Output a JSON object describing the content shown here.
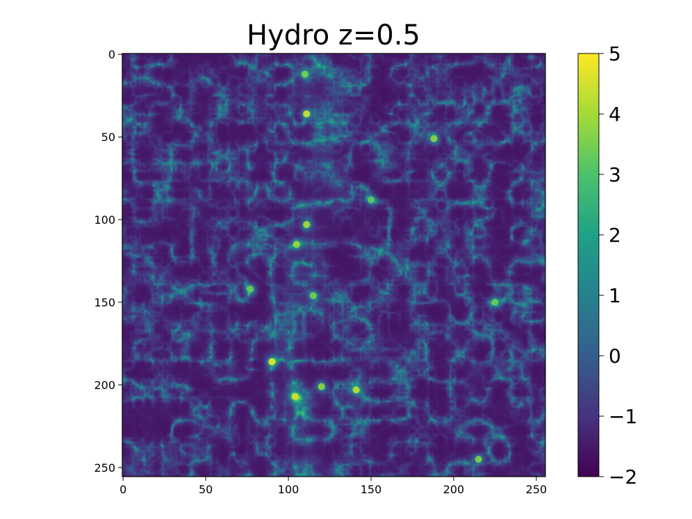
{
  "chart_data": {
    "type": "heatmap",
    "title": "Hydro z=0.5",
    "xlabel": "",
    "ylabel": "",
    "grid_size": 256,
    "xlim": [
      0,
      255
    ],
    "ylim": [
      255,
      0
    ],
    "x_ticks": [
      0,
      50,
      100,
      150,
      200,
      250
    ],
    "y_ticks": [
      0,
      50,
      100,
      150,
      200,
      250
    ],
    "x_tick_labels": [
      "0",
      "50",
      "100",
      "150",
      "200",
      "250"
    ],
    "y_tick_labels": [
      "0",
      "50",
      "100",
      "150",
      "200",
      "250"
    ],
    "colormap": "viridis",
    "colorbar": {
      "range": [
        -2,
        5
      ],
      "ticks": [
        -2,
        -1,
        0,
        1,
        2,
        3,
        4,
        5
      ],
      "tick_labels": [
        "−2",
        "−1",
        "0",
        "1",
        "2",
        "3",
        "4",
        "5"
      ]
    },
    "bright_clumps": [
      {
        "x": 111,
        "y": 36,
        "value": 4.6
      },
      {
        "x": 90,
        "y": 186,
        "value": 4.8
      },
      {
        "x": 104,
        "y": 207,
        "value": 4.5
      },
      {
        "x": 111,
        "y": 103,
        "value": 4.1
      },
      {
        "x": 105,
        "y": 115,
        "value": 3.9
      },
      {
        "x": 141,
        "y": 203,
        "value": 4.3
      },
      {
        "x": 120,
        "y": 201,
        "value": 3.8
      },
      {
        "x": 188,
        "y": 51,
        "value": 3.8
      },
      {
        "x": 215,
        "y": 245,
        "value": 3.6
      },
      {
        "x": 225,
        "y": 150,
        "value": 3.4
      },
      {
        "x": 115,
        "y": 146,
        "value": 3.5
      },
      {
        "x": 77,
        "y": 142,
        "value": 3.4
      },
      {
        "x": 110,
        "y": 12,
        "value": 3.5
      },
      {
        "x": 150,
        "y": 88,
        "value": 3.2
      }
    ]
  }
}
